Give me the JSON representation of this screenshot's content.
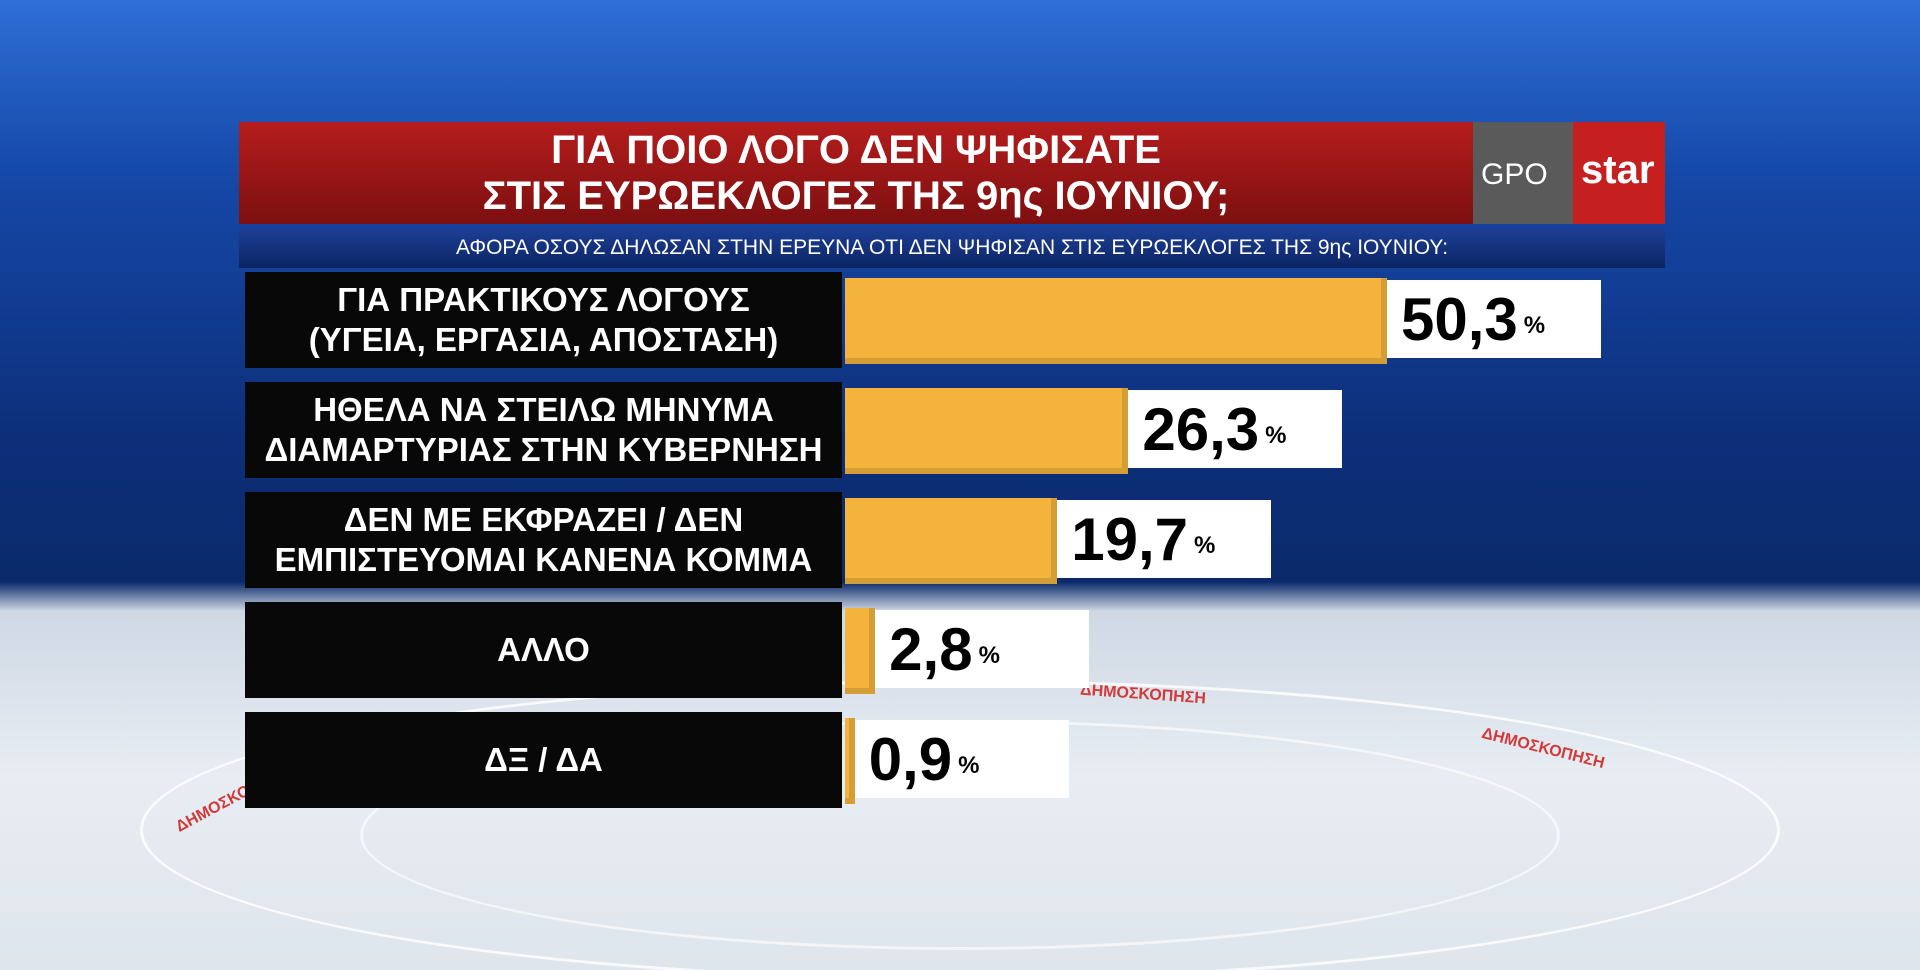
{
  "chart_data": {
    "type": "bar",
    "title": "ΓΙΑ ΠΟΙΟ ΛΟΓΟ ΔΕΝ ΨΗΦΙΣΑΤΕ\nΣΤΙΣ ΕΥΡΩΕΚΛΟΓΕΣ ΤΗΣ 9ης ΙΟΥΝΙΟΥ;",
    "subtitle": "ΑΦΟΡΑ ΟΣΟΥΣ ΔΗΛΩΣΑΝ ΣΤΗΝ ΕΡΕΥΝΑ ΟΤΙ ΔΕΝ ΨΗΦΙΣΑΝ ΣΤΙΣ ΕΥΡΩΕΚΛΟΓΕΣ ΤΗΣ 9ης ΙΟΥΝΙΟΥ:",
    "categories": [
      "ΓΙΑ ΠΡΑΚΤΙΚΟΥΣ ΛΟΓΟΥΣ\n(ΥΓΕΙΑ, ΕΡΓΑΣΙΑ, ΑΠΟΣΤΑΣΗ)",
      "ΗΘΕΛΑ ΝΑ ΣΤΕΙΛΩ ΜΗΝΥΜΑ\nΔΙΑΜΑΡΤΥΡΙΑΣ ΣΤΗΝ ΚΥΒΕΡΝΗΣΗ",
      "ΔΕΝ ΜΕ ΕΚΦΡΑΖΕΙ / ΔΕΝ\nΕΜΠΙΣΤΕΥΟΜΑΙ ΚΑΝΕΝΑ ΚΟΜΜΑ",
      "ΑΛΛΟ",
      "ΔΞ /  ΔΑ"
    ],
    "values": [
      50.3,
      26.3,
      19.7,
      2.8,
      0.9
    ],
    "value_labels": [
      "50,3",
      "26,3",
      "19,7",
      "2,8",
      "0,9"
    ],
    "unit": "%",
    "color": "#f3b33d"
  },
  "logo": {
    "left": "GPO",
    "right": "star"
  },
  "watermark": "ΔΗΜΟΣΚΟΠΗΣΗ"
}
